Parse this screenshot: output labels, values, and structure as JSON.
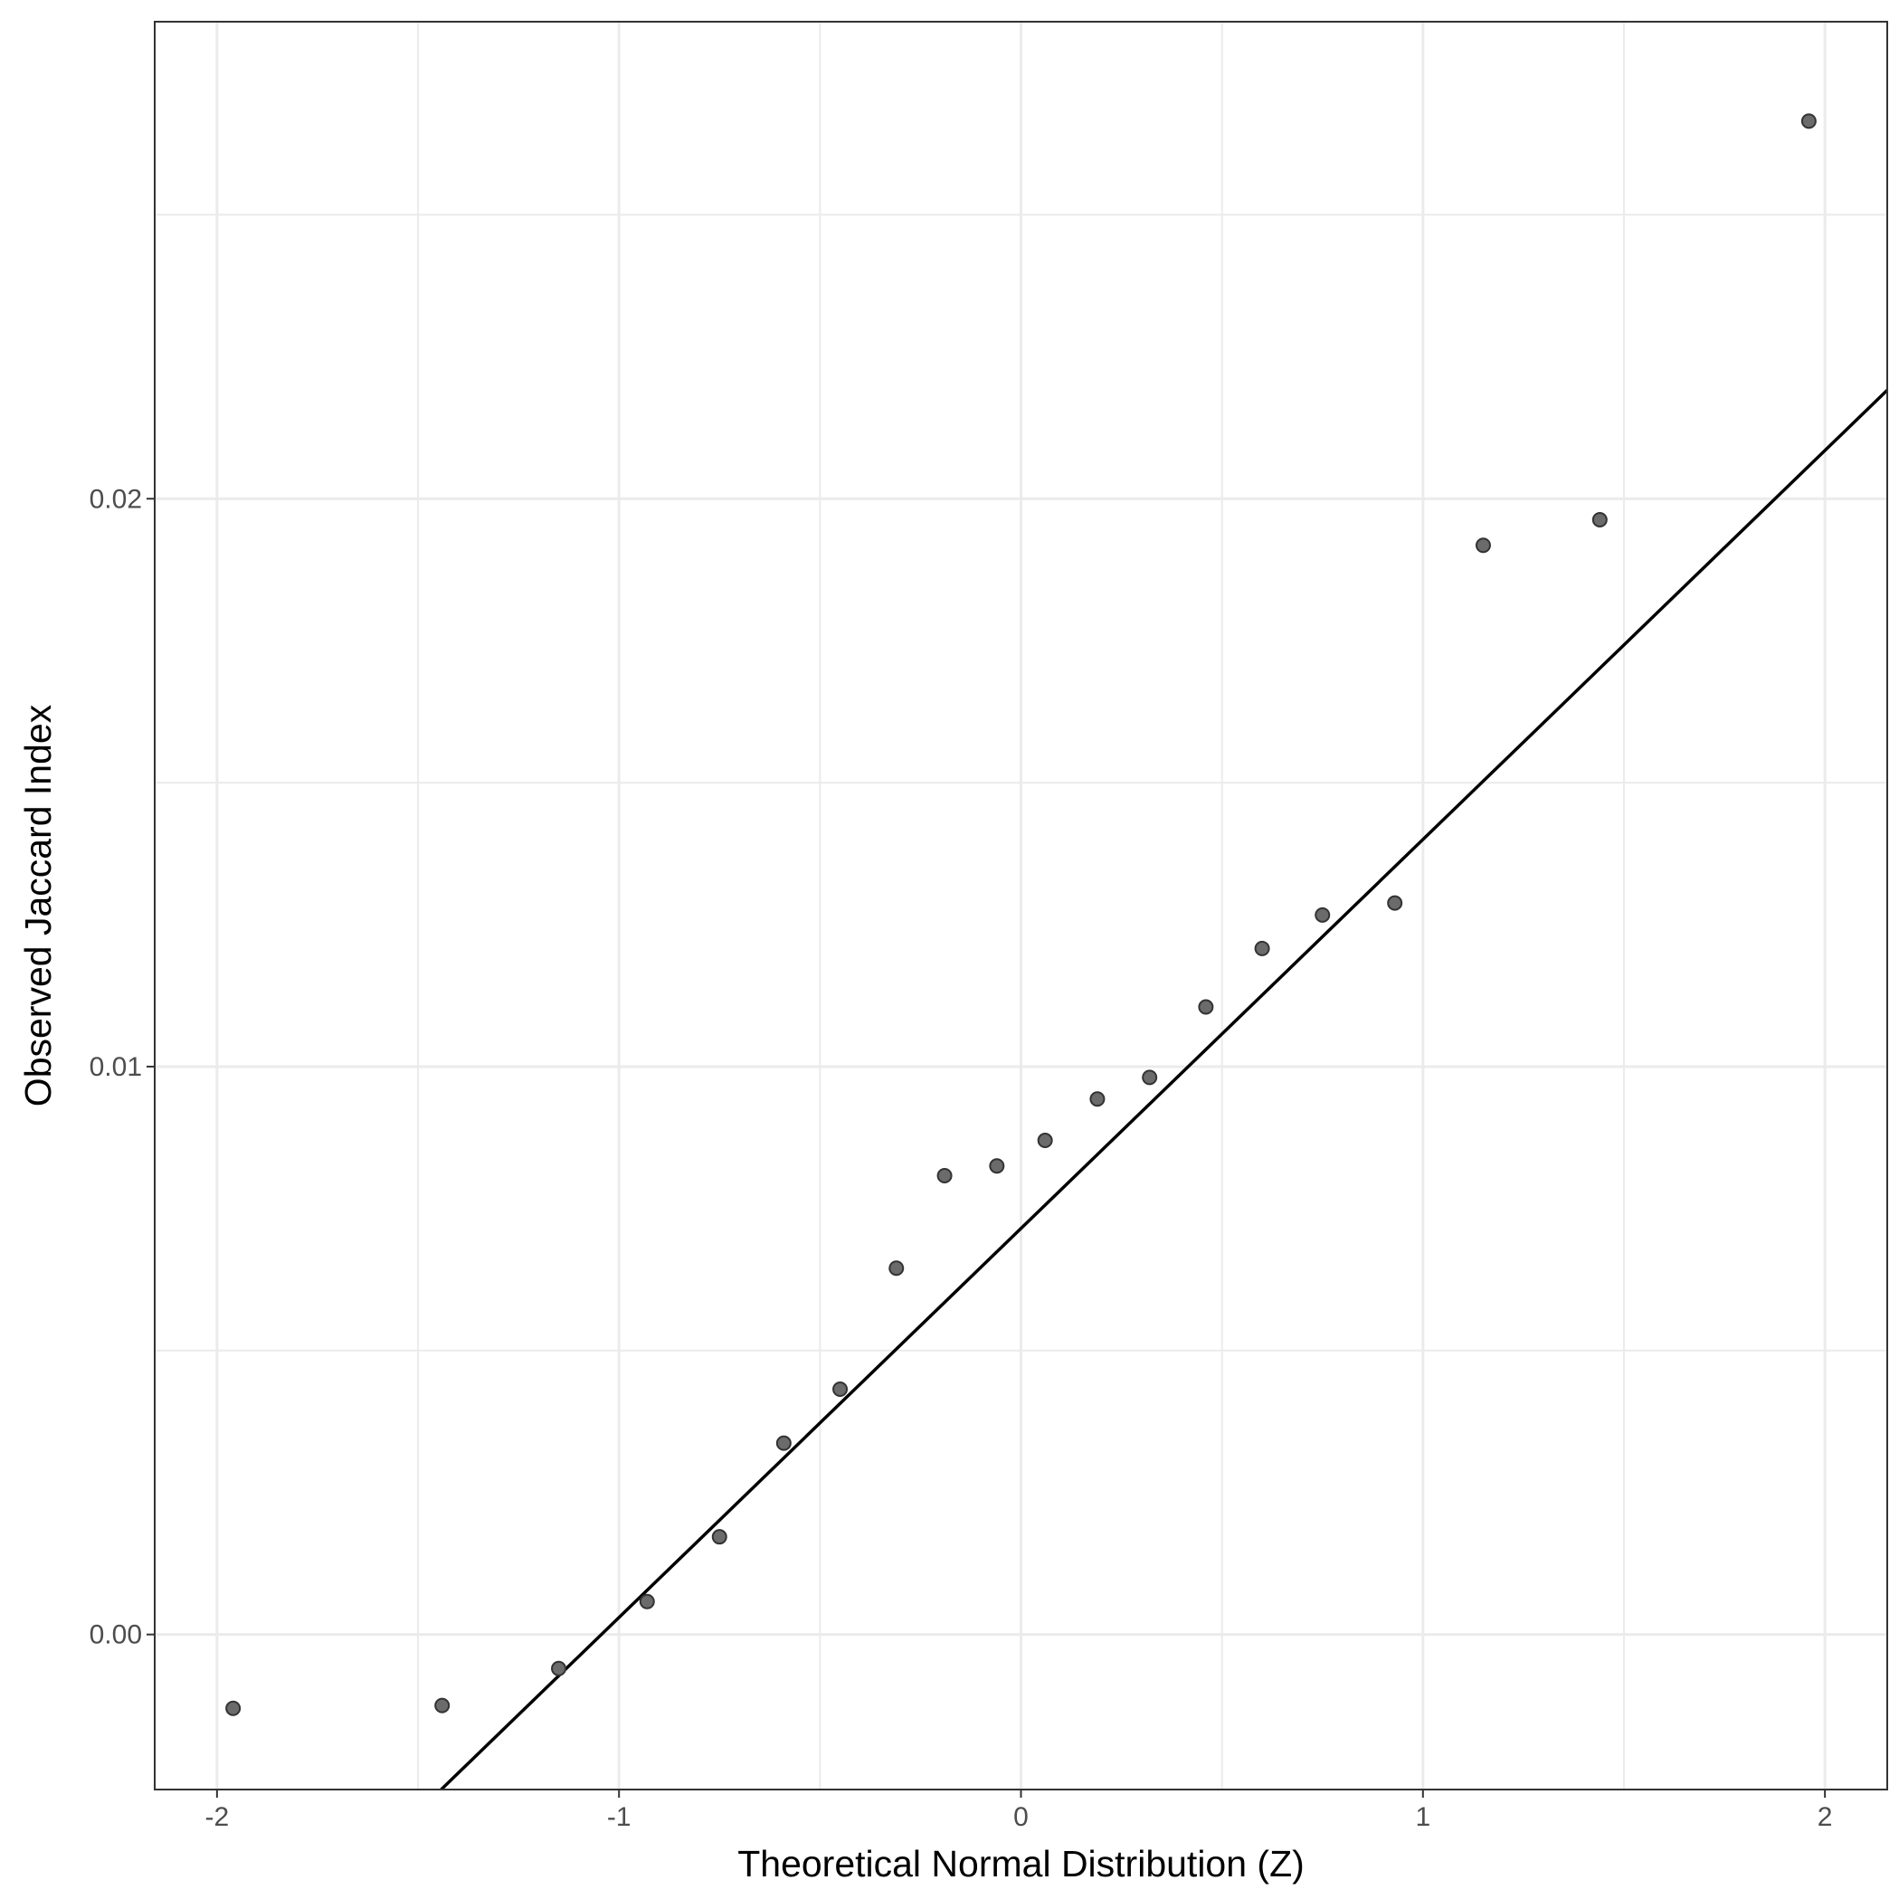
{
  "chart_data": {
    "type": "scatter",
    "title": "",
    "xlabel": "Theoretical Normal Distribution (Z)",
    "ylabel": "Observed Jaccard Index",
    "xlim": [
      -2.155,
      2.155
    ],
    "ylim": [
      -0.00273,
      0.0284
    ],
    "x_ticks": [
      -2,
      -1,
      0,
      1,
      2
    ],
    "x_tick_labels": [
      "-2",
      "-1",
      "0",
      "1",
      "2"
    ],
    "y_ticks": [
      0.0,
      0.01,
      0.02
    ],
    "y_tick_labels": [
      "0.00",
      "0.01",
      "0.02"
    ],
    "grid": true,
    "legend": "none",
    "points": {
      "x": [
        -1.96,
        -1.44,
        -1.15,
        -0.93,
        -0.75,
        -0.59,
        -0.45,
        -0.31,
        -0.19,
        -0.06,
        0.06,
        0.19,
        0.32,
        0.46,
        0.6,
        0.75,
        0.93,
        1.15,
        1.44,
        1.96
      ],
      "y": [
        -0.0013,
        -0.00125,
        -0.0006,
        0.00058,
        0.00172,
        0.00337,
        0.00432,
        0.00645,
        0.00808,
        0.00825,
        0.0087,
        0.00943,
        0.00981,
        0.01105,
        0.01208,
        0.01267,
        0.01288,
        0.01918,
        0.01963,
        0.02665
      ]
    },
    "reference_line": {
      "intercept": 0.00715,
      "slope": 0.00685
    },
    "colors": {
      "point_fill": "#6b6b6b",
      "point_stroke": "#333333",
      "line": "#000000",
      "grid": "#ebebeb",
      "panel_border": "#333333",
      "background": "#ffffff"
    }
  }
}
